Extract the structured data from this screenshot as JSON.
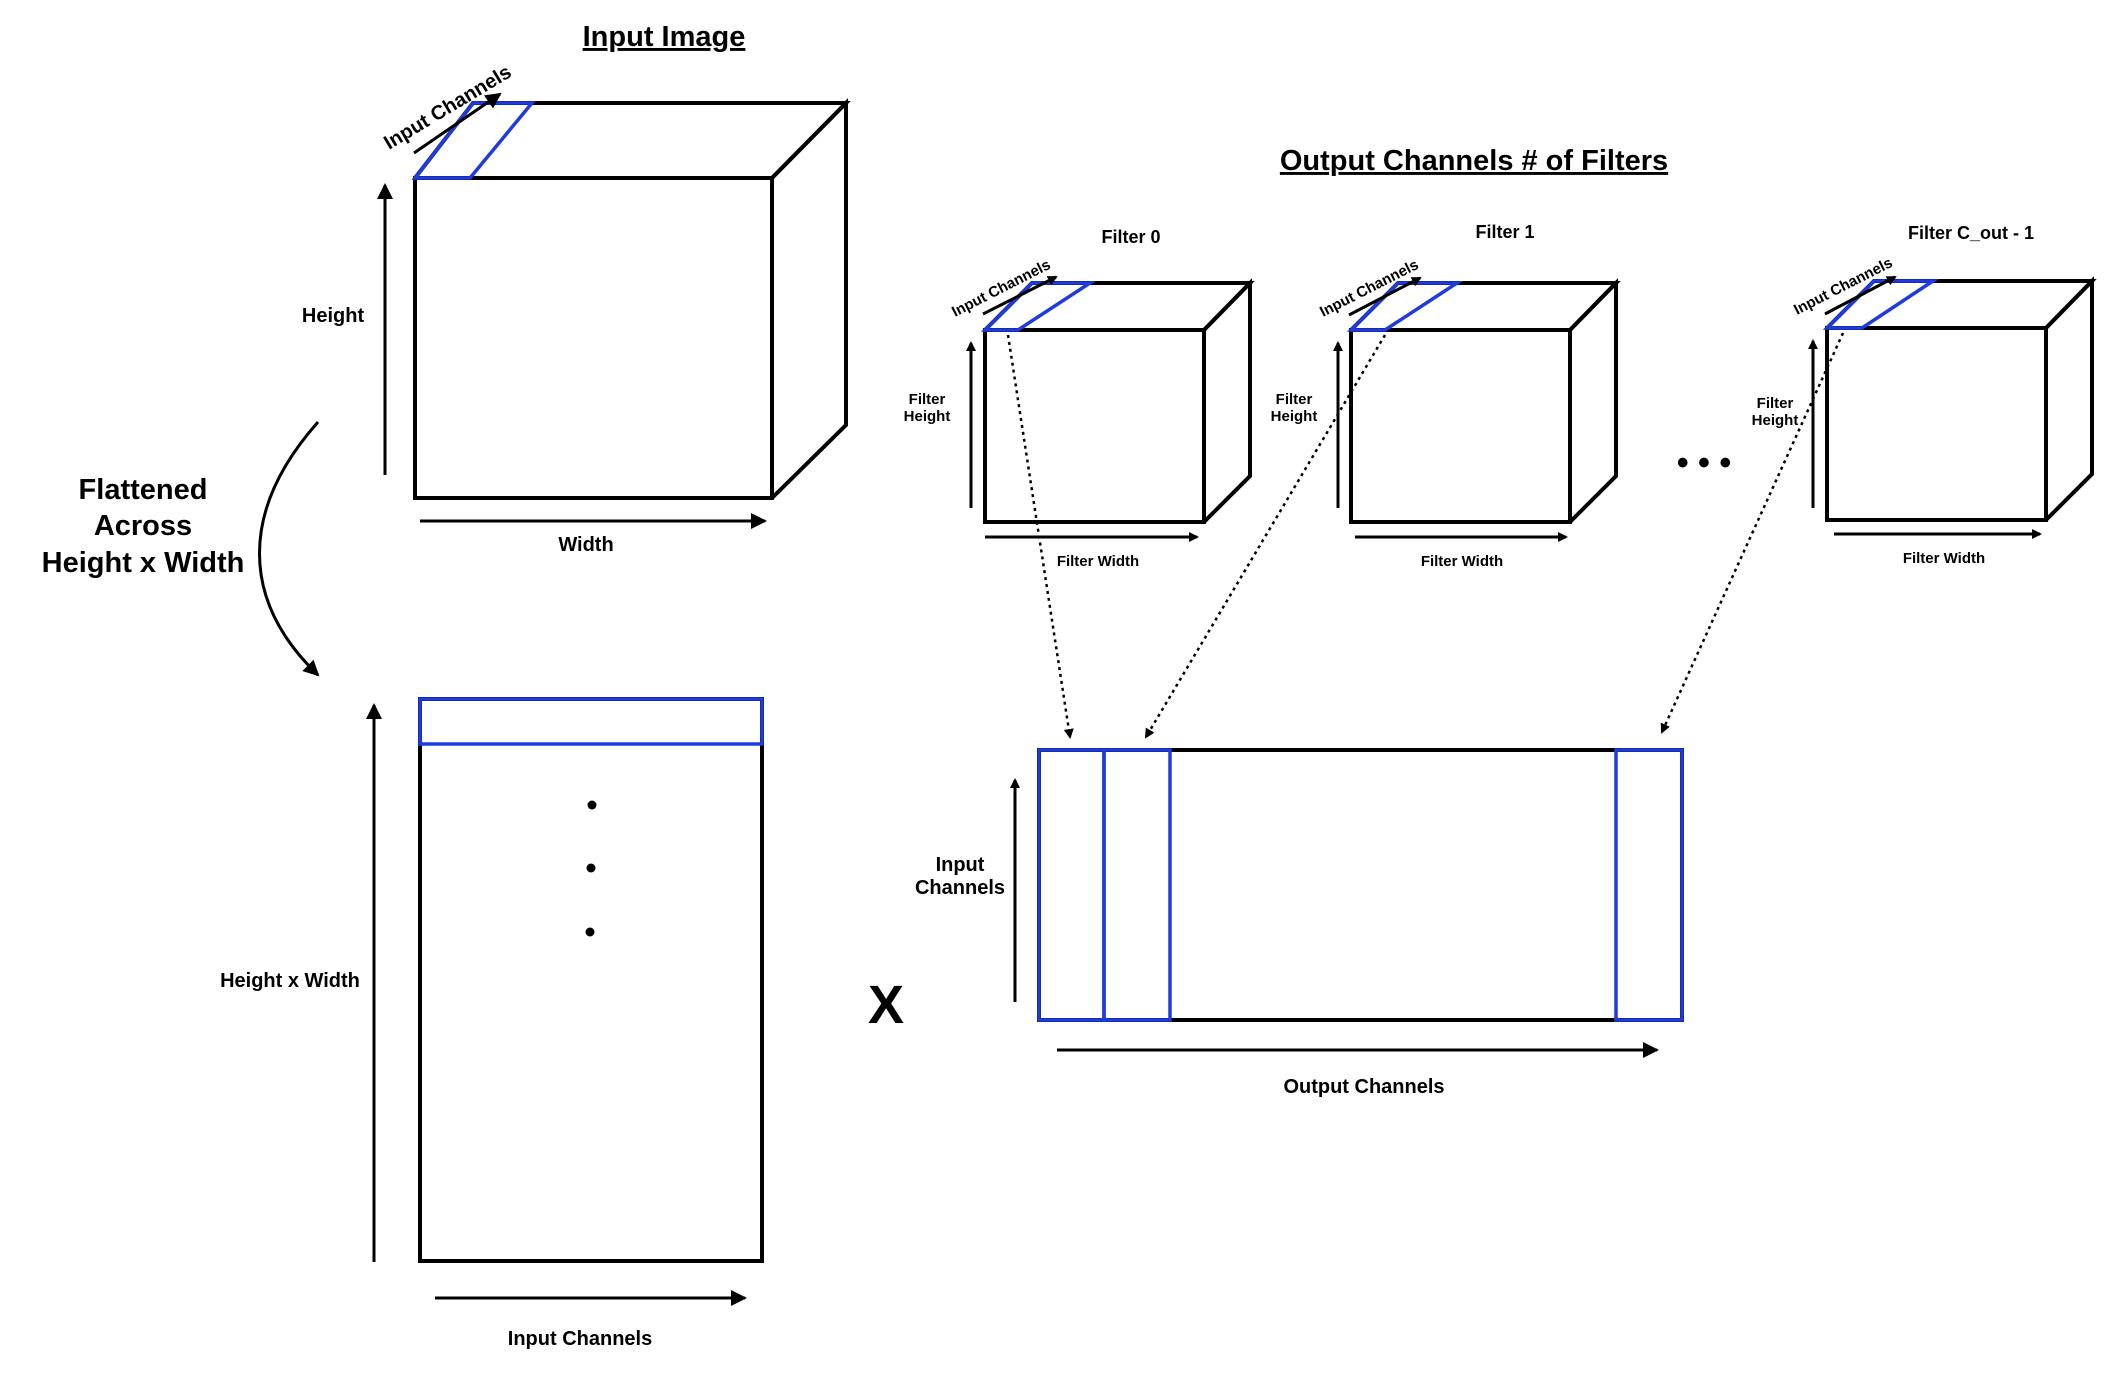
{
  "input_image": {
    "title": "Input Image",
    "axis_depth": "Input Channels",
    "axis_height": "Height",
    "axis_width": "Width"
  },
  "flatten_label": [
    "Flattened",
    "Across",
    "Height x Width"
  ],
  "flattened_matrix": {
    "axis_rows": "Height x Width",
    "axis_cols": "Input Channels"
  },
  "multiply_symbol": "X",
  "filters_section": {
    "title": "Output Channels # of Filters",
    "ellipsis": "• • •",
    "filters": [
      {
        "name": "Filter 0",
        "depth": "Input Channels",
        "height": [
          "Filter",
          "Height"
        ],
        "width": "Filter Width"
      },
      {
        "name": "Filter 1",
        "depth": "Input Channels",
        "height": [
          "Filter",
          "Height"
        ],
        "width": "Filter Width"
      },
      {
        "name": "Filter C_out - 1",
        "depth": "Input Channels",
        "height": [
          "Filter",
          "Height"
        ],
        "width": "Filter Width"
      }
    ]
  },
  "weight_matrix": {
    "axis_rows": [
      "Input",
      "Channels"
    ],
    "axis_cols": "Output Channels"
  },
  "colors": {
    "highlight": "#1f3be0",
    "line": "#000000"
  }
}
